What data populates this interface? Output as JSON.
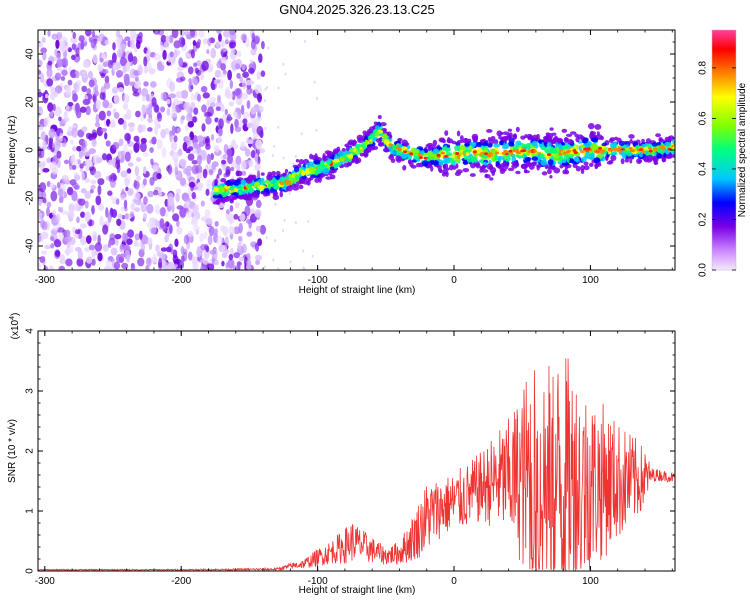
{
  "chart_data": [
    {
      "type": "heatmap",
      "title": "GN04.2025.326.23.13.C25",
      "xlabel": "Height of straight line (km)",
      "ylabel": "Frequency (Hz)",
      "xlim": [
        -305,
        162
      ],
      "ylim": [
        -50,
        50
      ],
      "xticks": [
        -300,
        -200,
        -100,
        0,
        100
      ],
      "yticks": [
        -40,
        -20,
        0,
        20,
        40
      ],
      "xticklabels": [
        "-300",
        "-200",
        "-100",
        "0",
        "100"
      ],
      "yticklabels": [
        "-40",
        "-20",
        "0",
        "20",
        "40"
      ],
      "colorbar": {
        "label": "Normalized spectral amplitude",
        "range": [
          0,
          0.95
        ],
        "ticks": [
          0,
          0.2,
          0.4,
          0.6,
          0.8
        ],
        "ticklabels": [
          "0.0",
          "0.2",
          "0.4",
          "0.6",
          "0.8"
        ],
        "colors": [
          "#f4e8ff",
          "#cc88ff",
          "#7a00e6",
          "#0000ff",
          "#00c8ff",
          "#00ff80",
          "#80ff00",
          "#ffff00",
          "#ff8000",
          "#ff0000",
          "#ff40a0"
        ]
      },
      "noise_region_x": [
        -305,
        -140
      ],
      "ridge": {
        "x": [
          -175,
          -155,
          -140,
          -125,
          -110,
          -95,
          -80,
          -65,
          -55,
          -50,
          -45,
          -35,
          -20,
          -10,
          0,
          10,
          25,
          40,
          55,
          70,
          85,
          100,
          115,
          130,
          145,
          162
        ],
        "y": [
          -17,
          -16,
          -15,
          -14,
          -9,
          -7,
          -3,
          2,
          8,
          4,
          1,
          -1,
          -3,
          -2,
          -2,
          -1,
          -2,
          -1,
          0,
          -2,
          -1,
          0,
          0,
          0,
          0,
          1
        ]
      }
    },
    {
      "type": "line",
      "title": "",
      "xlabel": "Height of straight line (km)",
      "ylabel": "SNR (10 * v/v)",
      "y_multiplier_label": "(x10",
      "y_multiplier_exp": "4",
      "xlim": [
        -305,
        162
      ],
      "ylim": [
        0,
        4
      ],
      "xticks": [
        -300,
        -200,
        -100,
        0,
        100
      ],
      "yticks": [
        0,
        1,
        2,
        3,
        4
      ],
      "xticklabels": [
        "-300",
        "-200",
        "-100",
        "0",
        "100"
      ],
      "yticklabels": [
        "0",
        "1",
        "2",
        "3",
        "4"
      ],
      "series": [
        {
          "name": "SNR",
          "color": "#ee3333",
          "x": [
            -305,
            -200,
            -130,
            -120,
            -110,
            -100,
            -90,
            -80,
            -75,
            -70,
            -60,
            -50,
            -40,
            -30,
            -20,
            -10,
            0,
            10,
            20,
            30,
            40,
            50,
            55,
            60,
            65,
            70,
            80,
            90,
            100,
            110,
            120,
            130,
            140,
            145,
            150,
            162
          ],
          "mean": [
            0.02,
            0.02,
            0.03,
            0.08,
            0.12,
            0.22,
            0.32,
            0.42,
            0.5,
            0.45,
            0.35,
            0.25,
            0.3,
            0.55,
            0.9,
            1.05,
            1.15,
            1.25,
            1.4,
            1.5,
            1.55,
            1.55,
            1.5,
            1.5,
            1.5,
            1.5,
            1.5,
            1.45,
            1.45,
            1.5,
            1.5,
            1.5,
            1.55,
            1.6,
            1.6,
            1.55
          ],
          "amp": [
            0.01,
            0.01,
            0.02,
            0.05,
            0.08,
            0.15,
            0.2,
            0.3,
            0.35,
            0.3,
            0.22,
            0.15,
            0.2,
            0.4,
            0.6,
            0.5,
            0.5,
            0.55,
            0.6,
            0.8,
            1.0,
            1.5,
            2.0,
            2.3,
            2.2,
            2.0,
            2.2,
            1.9,
            1.5,
            1.3,
            1.0,
            0.8,
            0.5,
            0.12,
            0.1,
            0.08
          ]
        }
      ]
    }
  ]
}
